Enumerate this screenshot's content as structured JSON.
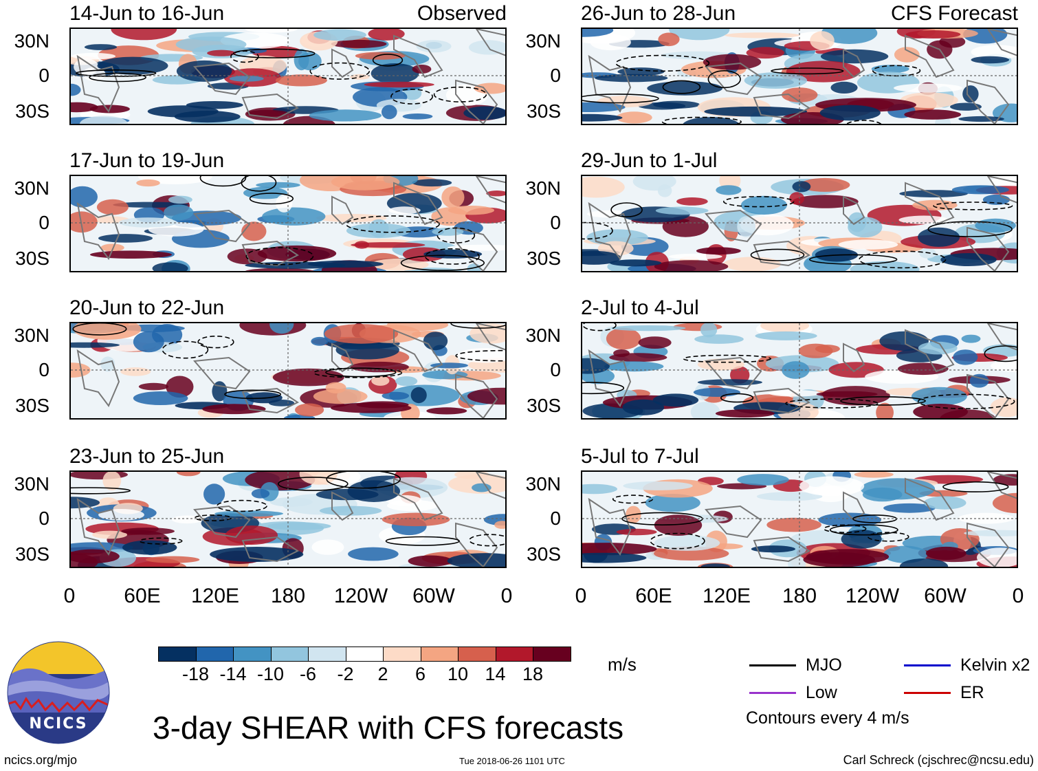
{
  "chart_data": {
    "type": "heatmap",
    "title": "3-day SHEAR with CFS forecasts",
    "units": "m/s",
    "panels": [
      {
        "label": "14-Jun to 16-Jun",
        "tag": "Observed"
      },
      {
        "label": "17-Jun to 19-Jun",
        "tag": ""
      },
      {
        "label": "20-Jun to 22-Jun",
        "tag": ""
      },
      {
        "label": "23-Jun to 25-Jun",
        "tag": ""
      },
      {
        "label": "26-Jun to 28-Jun",
        "tag": "CFS Forecast"
      },
      {
        "label": "29-Jun to 1-Jul",
        "tag": ""
      },
      {
        "label": "2-Jul to 4-Jul",
        "tag": ""
      },
      {
        "label": "5-Jul to 7-Jul",
        "tag": ""
      }
    ],
    "y_ticks": [
      "30N",
      "0",
      "30S"
    ],
    "x_ticks": [
      "0",
      "60E",
      "120E",
      "180",
      "120W",
      "60W",
      "0"
    ],
    "colorbar": {
      "ticks": [
        "-18",
        "-14",
        "-10",
        "-6",
        "-2",
        "2",
        "6",
        "10",
        "14",
        "18"
      ],
      "colors": [
        "#053061",
        "#2166ac",
        "#4393c3",
        "#92c5de",
        "#d1e5f0",
        "#ffffff",
        "#fddbc7",
        "#f4a582",
        "#d6604d",
        "#b2182b",
        "#67001f"
      ]
    },
    "contour_note": "Contours every 4 m/s",
    "legend": [
      {
        "name": "MJO",
        "color": "#000000"
      },
      {
        "name": "Kelvin x2",
        "color": "#0000cc"
      },
      {
        "name": "Low",
        "color": "#9933cc"
      },
      {
        "name": "ER",
        "color": "#cc0000"
      }
    ]
  },
  "branding": {
    "logo_text": "NCICS",
    "url": "ncics.org/mjo"
  },
  "footer": {
    "timestamp": "Tue 2018-06-26 1101 UTC",
    "credit": "Carl Schreck (cjschrec@ncsu.edu)"
  }
}
